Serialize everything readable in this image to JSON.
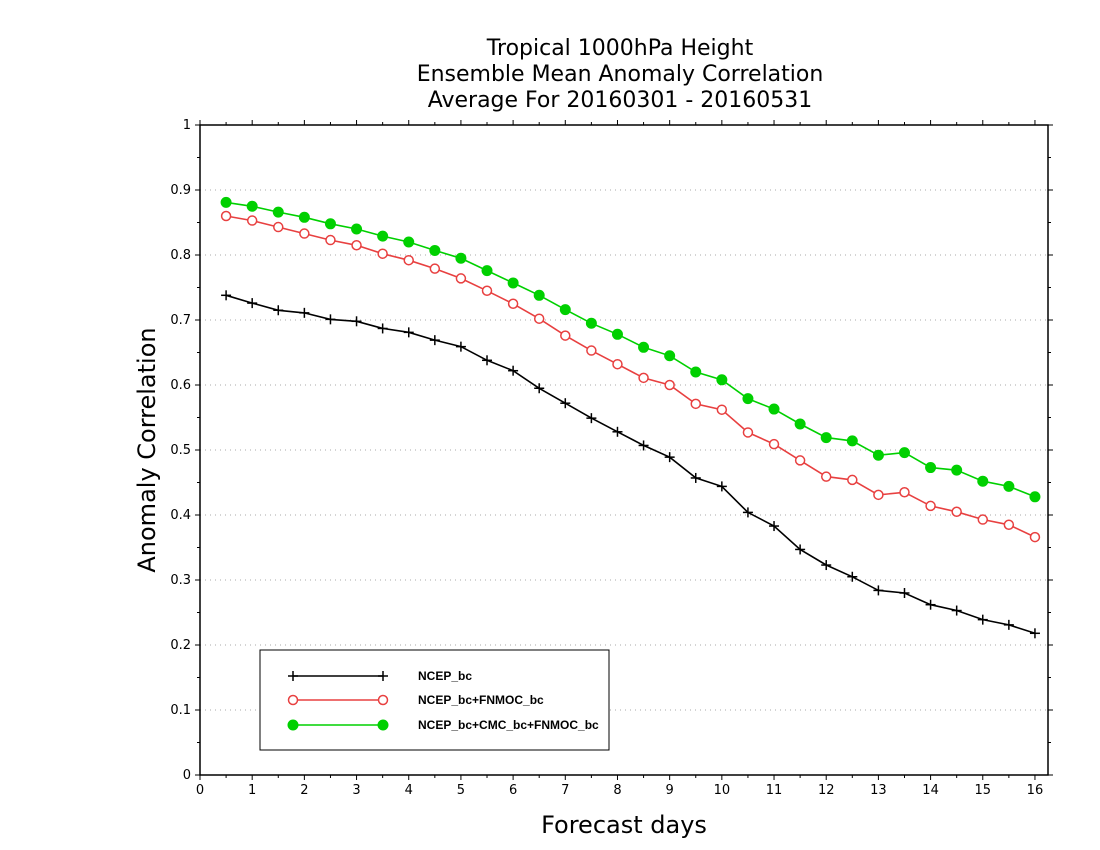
{
  "chart_data": {
    "type": "line",
    "title": [
      "Tropical 1000hPa Height",
      "Ensemble Mean Anomaly Correlation",
      "Average For 20160301 - 20160531"
    ],
    "xlabel": "Forecast days",
    "ylabel": "Anomaly Correlation",
    "xlim": [
      0,
      16.25
    ],
    "ylim": [
      0,
      1
    ],
    "xticks": [
      0,
      1,
      2,
      3,
      4,
      5,
      6,
      7,
      8,
      9,
      10,
      11,
      12,
      13,
      14,
      15,
      16
    ],
    "yticks": [
      0,
      0.1,
      0.2,
      0.3,
      0.4,
      0.5,
      0.6,
      0.7,
      0.8,
      0.9,
      1
    ],
    "ytick_labels": [
      "0",
      "0.1",
      "0.2",
      "0.3",
      "0.4",
      "0.5",
      "0.6",
      "0.7",
      "0.8",
      "0.9",
      "1"
    ],
    "grid": true,
    "legend_position": "bottom-left",
    "x": [
      0.5,
      1,
      1.5,
      2,
      2.5,
      3,
      3.5,
      4,
      4.5,
      5,
      5.5,
      6,
      6.5,
      7,
      7.5,
      8,
      8.5,
      9,
      9.5,
      10,
      10.5,
      11,
      11.5,
      12,
      12.5,
      13,
      13.5,
      14,
      14.5,
      15,
      15.5,
      16
    ],
    "series": [
      {
        "name": "NCEP_bc",
        "color": "#000000",
        "marker": "plus",
        "values": [
          0.738,
          0.726,
          0.715,
          0.711,
          0.701,
          0.698,
          0.687,
          0.681,
          0.669,
          0.659,
          0.638,
          0.622,
          0.595,
          0.572,
          0.549,
          0.528,
          0.507,
          0.489,
          0.457,
          0.444,
          0.404,
          0.383,
          0.347,
          0.323,
          0.305,
          0.284,
          0.28,
          0.262,
          0.253,
          0.239,
          0.231,
          0.218
        ]
      },
      {
        "name": "NCEP_bc+FNMOC_bc",
        "color": "#e84040",
        "marker": "open-circle",
        "values": [
          0.86,
          0.853,
          0.843,
          0.833,
          0.823,
          0.815,
          0.802,
          0.792,
          0.779,
          0.764,
          0.745,
          0.725,
          0.702,
          0.676,
          0.653,
          0.632,
          0.611,
          0.6,
          0.571,
          0.562,
          0.527,
          0.509,
          0.484,
          0.459,
          0.454,
          0.431,
          0.435,
          0.414,
          0.405,
          0.393,
          0.385,
          0.366
        ]
      },
      {
        "name": "NCEP_bc+CMC_bc+FNMOC_bc",
        "color": "#00d000",
        "marker": "filled-circle",
        "values": [
          0.881,
          0.875,
          0.866,
          0.858,
          0.848,
          0.84,
          0.829,
          0.82,
          0.807,
          0.795,
          0.776,
          0.757,
          0.738,
          0.716,
          0.695,
          0.678,
          0.658,
          0.645,
          0.62,
          0.608,
          0.579,
          0.563,
          0.54,
          0.519,
          0.514,
          0.492,
          0.496,
          0.473,
          0.469,
          0.452,
          0.444,
          0.428
        ]
      }
    ]
  }
}
